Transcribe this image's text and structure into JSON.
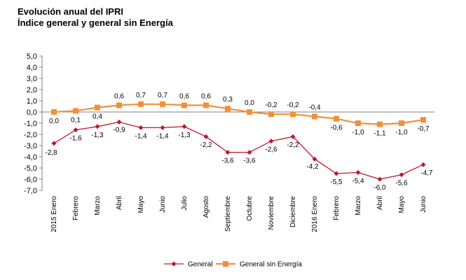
{
  "chart_data": {
    "type": "line",
    "title": "Evolución anual del IPRI",
    "subtitle": "Índice general y general sin Energía",
    "xlabel": "",
    "ylabel": "",
    "ylim": [
      -7.0,
      5.0
    ],
    "ytick_step": 1.0,
    "y_tick_labels": [
      "5,0",
      "4,0",
      "3,0",
      "2,0",
      "1,0",
      "0,0",
      "-1,0",
      "-2,0",
      "-3,0",
      "-4,0",
      "-5,0",
      "-6,0",
      "-7,0"
    ],
    "grid": false,
    "legend_position": "bottom",
    "categories": [
      "2015 Enero",
      "Febrero",
      "Marzo",
      "Abril",
      "Mayo",
      "Junio",
      "Julio",
      "Agosto",
      "Septiembre",
      "Octubre",
      "Noviembre",
      "Diciembre",
      "2016 Enero",
      "Febrero",
      "Marzo",
      "Abril",
      "Mayo",
      "Junio"
    ],
    "series": [
      {
        "name": "General",
        "color": "#c0182a",
        "marker": "diamond",
        "values": [
          -2.8,
          -1.6,
          -1.3,
          -0.9,
          -1.4,
          -1.4,
          -1.3,
          -2.2,
          -3.6,
          -3.6,
          -2.6,
          -2.2,
          -4.2,
          -5.5,
          -5.4,
          -6.0,
          -5.6,
          -4.7
        ],
        "labels": [
          "-2,8",
          "-1,6",
          "-1,3",
          "-0,9",
          "-1,4",
          "-1,4",
          "-1,3",
          "-2,2",
          "-3,6",
          "-3,6",
          "-2,6",
          "-2,2",
          "-4,2",
          "-5,5",
          "-5,4",
          "-6,0",
          "-5,6",
          "-4,7"
        ]
      },
      {
        "name": "General sin Energía",
        "color": "#f0913a",
        "marker": "square",
        "values": [
          0.0,
          0.1,
          0.4,
          0.6,
          0.7,
          0.7,
          0.6,
          0.6,
          0.3,
          0.0,
          -0.2,
          -0.2,
          -0.4,
          -0.6,
          -1.0,
          -1.1,
          -1.0,
          -0.7
        ],
        "labels": [
          "0,0",
          "0,1",
          "0,4",
          "0,6",
          "0,7",
          "0,7",
          "0,6",
          "0,6",
          "0,3",
          "0,0",
          "-0,2",
          "-0,2",
          "-0,4",
          "-0,6",
          "-1,0",
          "-1,1",
          "-1,0",
          "-0,7"
        ]
      }
    ]
  }
}
